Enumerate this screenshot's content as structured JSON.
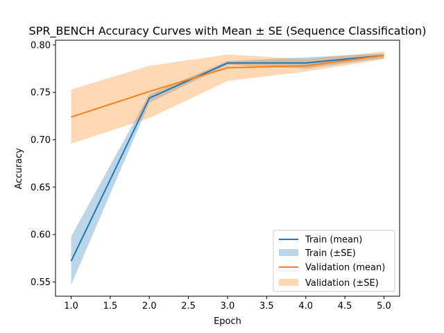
{
  "chart_data": {
    "type": "line",
    "title": "SPR_BENCH Accuracy Curves with Mean ± SE (Sequence Classification)",
    "xlabel": "Epoch",
    "ylabel": "Accuracy",
    "xlim": [
      0.8,
      5.2
    ],
    "ylim": [
      0.535,
      0.805
    ],
    "xticks": [
      1.0,
      1.5,
      2.0,
      2.5,
      3.0,
      3.5,
      4.0,
      4.5,
      5.0
    ],
    "xtick_labels": [
      "1.0",
      "1.5",
      "2.0",
      "2.5",
      "3.0",
      "3.5",
      "4.0",
      "4.5",
      "5.0"
    ],
    "yticks": [
      0.55,
      0.6,
      0.65,
      0.7,
      0.75,
      0.8
    ],
    "ytick_labels": [
      "0.55",
      "0.60",
      "0.65",
      "0.70",
      "0.75",
      "0.80"
    ],
    "grid": false,
    "legend_position": "lower-right",
    "x": [
      1,
      2,
      3,
      4,
      5
    ],
    "series": [
      {
        "name": "Train (mean)",
        "band_name": "Train (±SE)",
        "color": "#1f77b4",
        "values": [
          0.572,
          0.744,
          0.781,
          0.781,
          0.789
        ],
        "upper": [
          0.598,
          0.748,
          0.783,
          0.787,
          0.791
        ],
        "lower": [
          0.547,
          0.739,
          0.779,
          0.775,
          0.786
        ]
      },
      {
        "name": "Validation (mean)",
        "band_name": "Validation (±SE)",
        "color": "#ff7f0e",
        "values": [
          0.724,
          0.751,
          0.776,
          0.778,
          0.789
        ],
        "upper": [
          0.753,
          0.778,
          0.79,
          0.785,
          0.793
        ],
        "lower": [
          0.696,
          0.723,
          0.762,
          0.772,
          0.785
        ]
      }
    ]
  }
}
